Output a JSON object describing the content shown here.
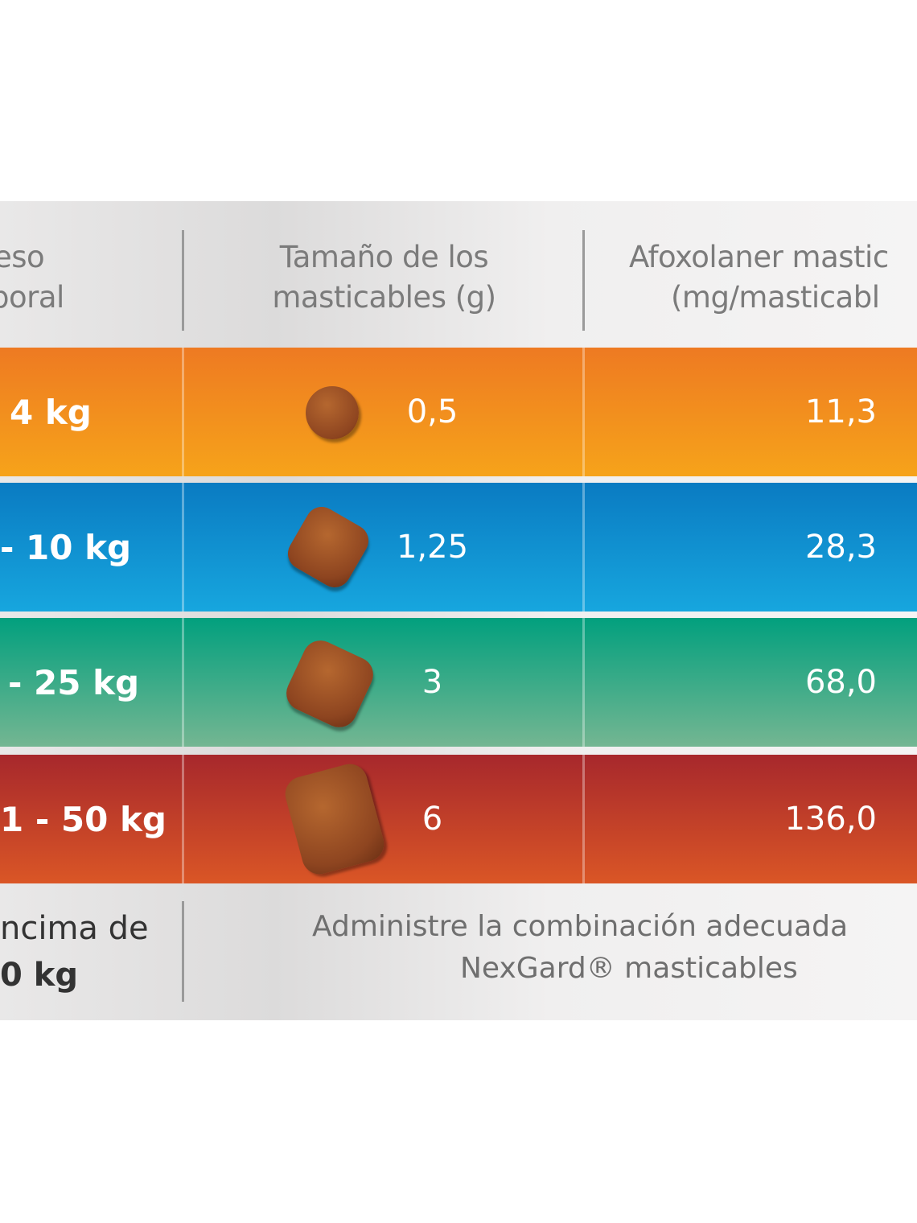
{
  "header": {
    "col1": [
      "eso",
      "poral"
    ],
    "col2": [
      "Tamaño de los",
      "masticables (g)"
    ],
    "col3": [
      "Afoxolaner mastic",
      "(mg/masticabl"
    ]
  },
  "rows": [
    {
      "weight": "4 kg",
      "size": "0,5",
      "dose": "11,3",
      "color_top": "#ee7a22",
      "color_bottom": "#f6a31a"
    },
    {
      "weight": "- 10 kg",
      "size": "1,25",
      "dose": "28,3",
      "color_top": "#0a7bc2",
      "color_bottom": "#17a6de"
    },
    {
      "weight": "- 25 kg",
      "size": "3",
      "dose": "68,0",
      "color_top": "#02a07e",
      "color_bottom": "#74b692"
    },
    {
      "weight": "1 - 50 kg",
      "size": "6",
      "dose": "136,0",
      "color_top": "#a7282c",
      "color_bottom": "#da5626"
    }
  ],
  "footer": {
    "weight": [
      "ncima de",
      "0 kg"
    ],
    "note": [
      "Administre la combinación adecuada",
      "NexGard® masticables"
    ]
  }
}
